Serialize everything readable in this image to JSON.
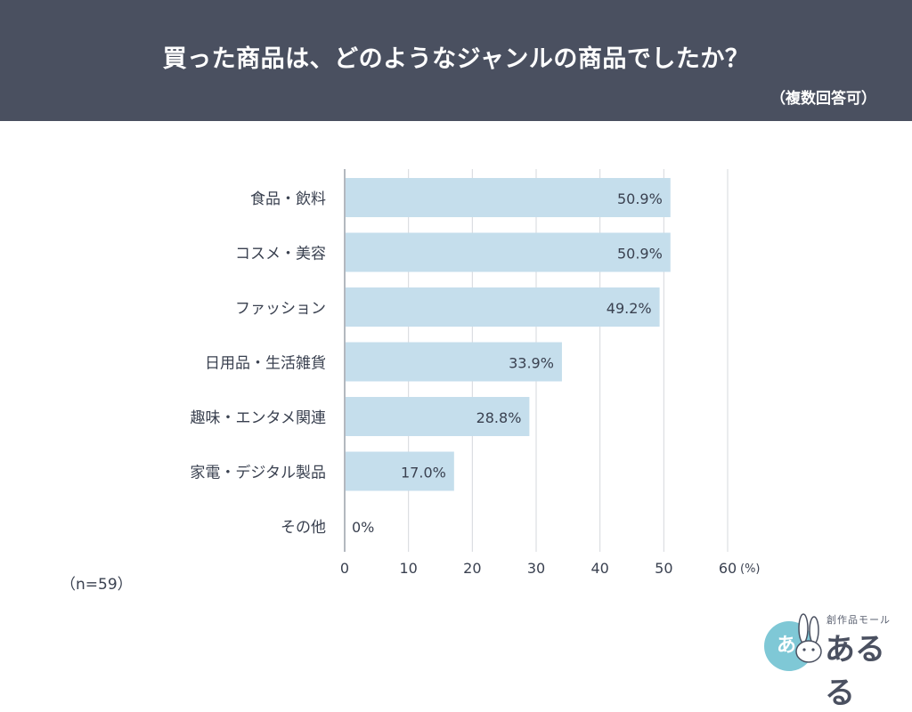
{
  "header": {
    "title": "買った商品は、どのようなジャンルの商品でしたか？",
    "subtitle": "（複数回答可）"
  },
  "sample_size": "（n=59）",
  "logo": {
    "top_text": "創作品モール",
    "main_text": "あるる",
    "badge_text": "あ"
  },
  "colors": {
    "header_bg": "#4a5060",
    "bar": "#c5deec",
    "grid": "#d5d8dd",
    "text": "#3a4150",
    "logo_circle": "#7fc8d6"
  },
  "chart_data": {
    "type": "bar",
    "orientation": "horizontal",
    "categories": [
      "食品・飲料",
      "コスメ・美容",
      "ファッション",
      "日用品・生活雑貨",
      "趣味・エンタメ関連",
      "家電・デジタル製品",
      "その他"
    ],
    "values": [
      50.9,
      50.9,
      49.2,
      33.9,
      28.8,
      17.0,
      0
    ],
    "value_labels": [
      "50.9%",
      "50.9%",
      "49.2%",
      "33.9%",
      "28.8%",
      "17.0%",
      "0%"
    ],
    "xlim": [
      0,
      60
    ],
    "ticks": [
      "0",
      "10",
      "20",
      "30",
      "40",
      "50",
      "60"
    ],
    "unit_label": "(%)",
    "grid": true
  }
}
